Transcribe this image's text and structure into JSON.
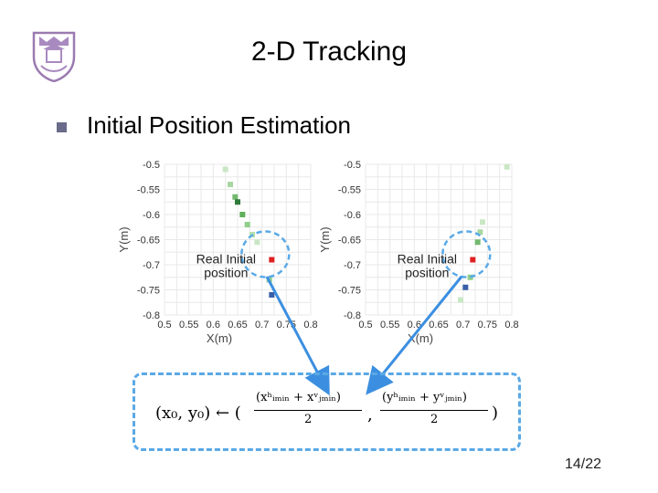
{
  "slide": {
    "title": "2-D Tracking",
    "bullet": "Initial Position Estimation",
    "page_number": "14/22",
    "logo_icon": "university-seal-icon"
  },
  "colors": {
    "accent": "#5aa9e6",
    "arrow": "#3c8fe0",
    "real_point": "#e02020",
    "bullet": "#6b6b8a"
  },
  "chart_data": [
    {
      "type": "scatter",
      "xlabel": "X(m)",
      "ylabel": "Y(m)",
      "xlim": [
        0.5,
        0.8
      ],
      "ylim": [
        -0.8,
        -0.5
      ],
      "xticks": [
        "0.5",
        "0.55",
        "0.6",
        "0.65",
        "0.7",
        "0.75",
        "0.8"
      ],
      "yticks": [
        "-0.5",
        "-0.55",
        "-0.6",
        "-0.65",
        "-0.7",
        "-0.75",
        "-0.8"
      ],
      "annotation": [
        "Real Initial",
        "position"
      ],
      "real_initial": {
        "x": 0.72,
        "y": -0.69
      },
      "points": [
        {
          "x": 0.625,
          "y": -0.51,
          "shade": "#c9e7c4"
        },
        {
          "x": 0.635,
          "y": -0.54,
          "shade": "#a8d8a2"
        },
        {
          "x": 0.645,
          "y": -0.565,
          "shade": "#73b86e"
        },
        {
          "x": 0.65,
          "y": -0.575,
          "shade": "#2f7a3a"
        },
        {
          "x": 0.66,
          "y": -0.6,
          "shade": "#5fae5b"
        },
        {
          "x": 0.67,
          "y": -0.62,
          "shade": "#8fcf89"
        },
        {
          "x": 0.68,
          "y": -0.64,
          "shade": "#b3e0ad"
        },
        {
          "x": 0.69,
          "y": -0.655,
          "shade": "#c9e7c4"
        },
        {
          "x": 0.715,
          "y": -0.73,
          "shade": "#8fcf89"
        },
        {
          "x": 0.72,
          "y": -0.76,
          "shade": "#3a5fa8"
        }
      ]
    },
    {
      "type": "scatter",
      "xlabel": "X(m)",
      "ylabel": "Y(m)",
      "xlim": [
        0.5,
        0.8
      ],
      "ylim": [
        -0.8,
        -0.5
      ],
      "xticks": [
        "0.5",
        "0.55",
        "0.6",
        "0.65",
        "0.7",
        "0.75",
        "0.8"
      ],
      "yticks": [
        "-0.5",
        "-0.55",
        "-0.6",
        "-0.65",
        "-0.7",
        "-0.75",
        "-0.8"
      ],
      "annotation": [
        "Real Initial",
        "position"
      ],
      "real_initial": {
        "x": 0.72,
        "y": -0.69
      },
      "points": [
        {
          "x": 0.79,
          "y": -0.505,
          "shade": "#c9e7c4"
        },
        {
          "x": 0.74,
          "y": -0.615,
          "shade": "#c9e7c4"
        },
        {
          "x": 0.735,
          "y": -0.635,
          "shade": "#a8d8a2"
        },
        {
          "x": 0.73,
          "y": -0.655,
          "shade": "#73b86e"
        },
        {
          "x": 0.715,
          "y": -0.725,
          "shade": "#8fcf89"
        },
        {
          "x": 0.705,
          "y": -0.745,
          "shade": "#3a5fa8"
        },
        {
          "x": 0.695,
          "y": -0.77,
          "shade": "#c9e7c4"
        }
      ]
    }
  ],
  "formula": {
    "lhs": "(x₀, y₀) ← (",
    "num1": "(xʰᵢₘᵢₙ + xᵛⱼₘᵢₙ)",
    "den1": "2",
    "sep": ",",
    "num2": "(yʰᵢₘᵢₙ + yᵛⱼₘᵢₙ)",
    "den2": "2",
    "close": ")"
  }
}
